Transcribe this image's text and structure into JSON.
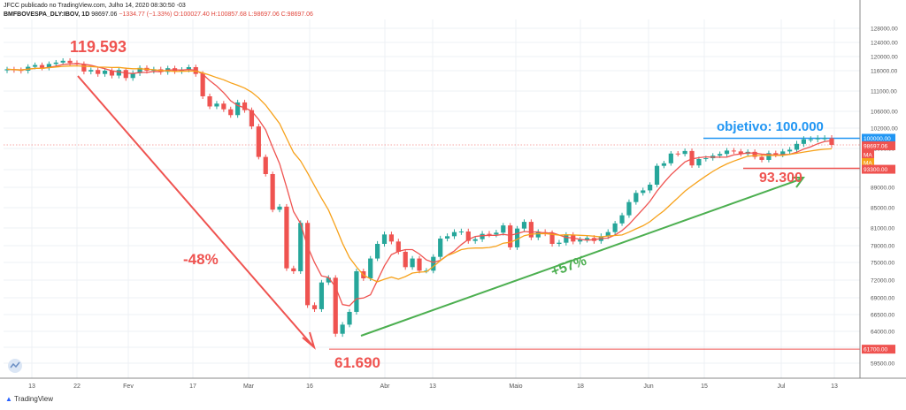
{
  "header": {
    "line1": "JFCC publicado no TradingView.com, Julho 14, 2020 08:30:50 -03",
    "symbol": "BMFBOVESPA_DLY:IBOV, 1D",
    "last": "98697.06",
    "change": "−1334.77 (−1.33%)",
    "ohlc": "O:100027.40 H:100857.68 L:98697.06 C:98697.06"
  },
  "footer": {
    "brand": "TradingView"
  },
  "colors": {
    "up": "#26a69a",
    "down": "#ef5350",
    "ma_fast": "#ef5350",
    "ma_slow": "#f7a21b",
    "arrow_down": "#ef5350",
    "arrow_up": "#4caf50",
    "target": "#2196f3"
  },
  "annotations": {
    "peak": "119.593",
    "bottom": "61.690",
    "drop": "-48%",
    "rise": "+57%",
    "target": "objetivo: 100.000",
    "support": "93.300"
  },
  "chart_data": {
    "type": "candlestick",
    "title": "",
    "y_ticks": [
      128000,
      124000,
      120000,
      116000,
      111000,
      106000,
      102000,
      98000,
      93000,
      89000,
      85000,
      81000,
      78000,
      75000,
      72000,
      69000,
      66500,
      64000,
      62000,
      59500
    ],
    "x_ticks": [
      "13",
      "22",
      "Fev",
      "17",
      "Mar",
      "16",
      "Abr",
      "13",
      "Maio",
      "18",
      "Jun",
      "15",
      "Jul",
      "13"
    ],
    "price_labels": [
      {
        "value": "100000.00",
        "color": "#2196f3"
      },
      {
        "value": "98697.06",
        "color": "#ef5350"
      },
      {
        "value": "MA",
        "color": "#ef5350"
      },
      {
        "value": "MA",
        "color": "#f7a21b"
      },
      {
        "value": "93300.00",
        "color": "#ef5350"
      },
      {
        "value": "61700.00",
        "color": "#ef5350"
      }
    ],
    "horizontal_levels": [
      100000,
      93300,
      61700
    ],
    "series": [
      {
        "name": "MA",
        "kind": "ma_fast"
      },
      {
        "name": "MA",
        "kind": "ma_slow"
      }
    ],
    "closes": [
      116400,
      116200,
      116000,
      117100,
      117600,
      116800,
      117900,
      118300,
      118800,
      118200,
      117900,
      115800,
      116200,
      115200,
      116000,
      114800,
      116200,
      114200,
      115400,
      116800,
      116000,
      116400,
      115700,
      116700,
      115900,
      116300,
      117000,
      115200,
      109700,
      107200,
      107900,
      106500,
      105100,
      108200,
      106300,
      102400,
      96000,
      92000,
      84600,
      85200,
      74000,
      73500,
      82000,
      67900,
      67300,
      71600,
      72400,
      63700,
      65000,
      66900,
      73500,
      72300,
      75700,
      78300,
      79900,
      78700,
      76900,
      74200,
      75700,
      73600,
      73600,
      76000,
      79200,
      79600,
      80300,
      80400,
      78800,
      79100,
      80000,
      79900,
      80200,
      81500,
      77700,
      80900,
      82200,
      79400,
      80300,
      80100,
      78300,
      78500,
      79800,
      78700,
      79000,
      79300,
      78800,
      79600,
      80300,
      81900,
      83500,
      86100,
      87900,
      88400,
      89600,
      93900,
      94500,
      96800,
      96700,
      97400,
      94000,
      95500,
      95700,
      96300,
      96700,
      97500,
      97300,
      96700,
      97200,
      96000,
      95300,
      96900,
      96500,
      97300,
      97700,
      98900,
      99800,
      99800,
      100000,
      100000,
      98700
    ]
  }
}
